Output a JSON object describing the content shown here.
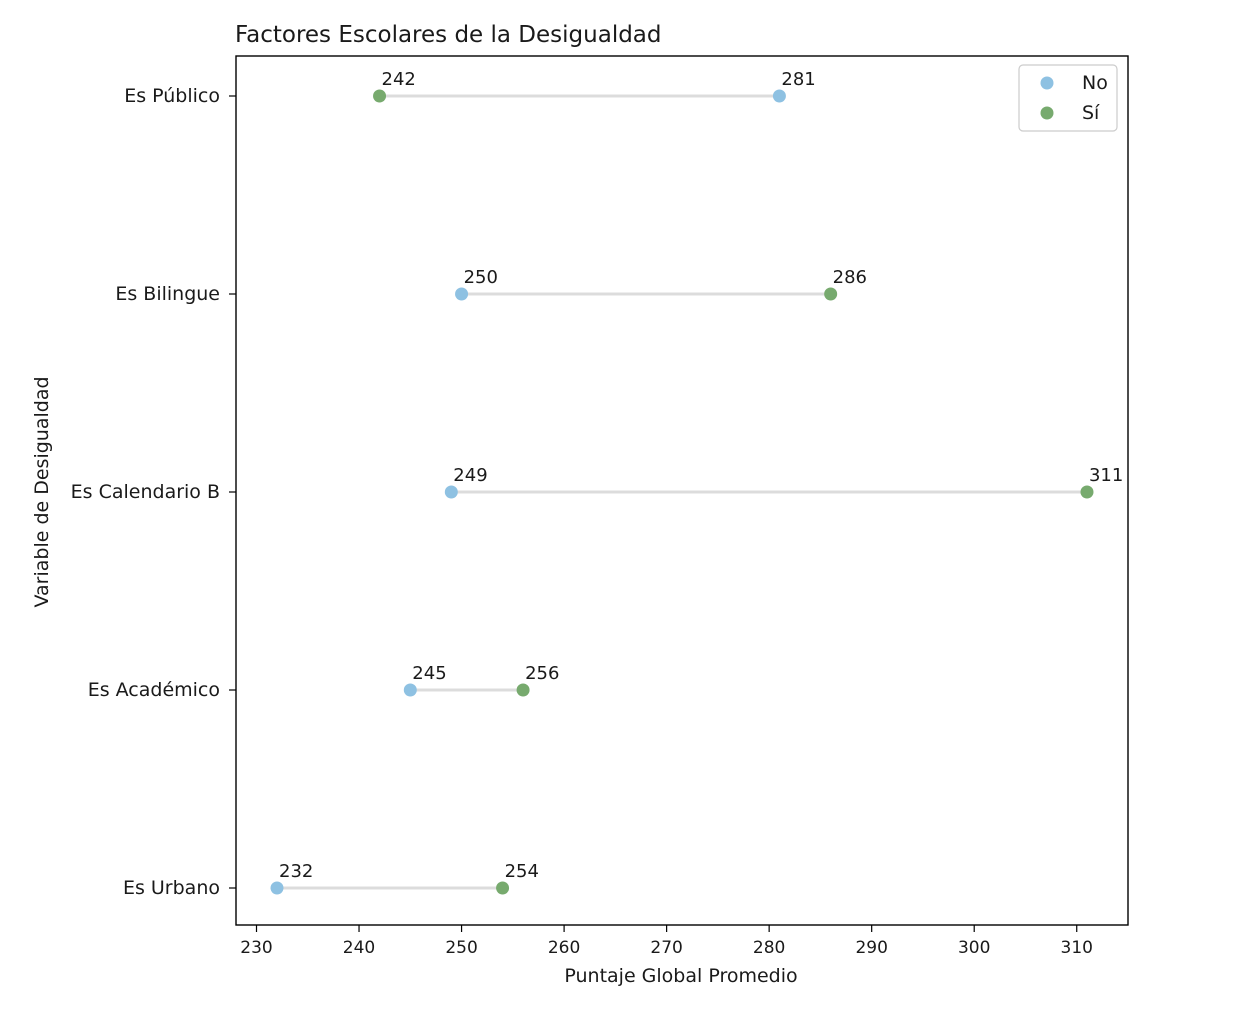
{
  "chart_data": {
    "type": "dumbbell",
    "title": "Factores Escolares de la Desigualdad",
    "xlabel": "Puntaje Global Promedio",
    "ylabel": "Variable de Desigualdad",
    "xlim": [
      228,
      315
    ],
    "xticks": [
      230,
      240,
      250,
      260,
      270,
      280,
      290,
      300,
      310
    ],
    "categories": [
      "Es Público",
      "Es Bilingue",
      "Es Calendario B",
      "Es Académico",
      "Es Urbano"
    ],
    "series": [
      {
        "name": "No",
        "color": "#8ec1e2",
        "values": [
          281,
          250,
          249,
          245,
          232
        ]
      },
      {
        "name": "Sí",
        "color": "#77aa6e",
        "values": [
          242,
          286,
          311,
          256,
          254
        ]
      }
    ],
    "connector_color": "#dcdcdc",
    "legend": {
      "position": "top-right",
      "entries": [
        "No",
        "Sí"
      ]
    },
    "grid": false
  }
}
